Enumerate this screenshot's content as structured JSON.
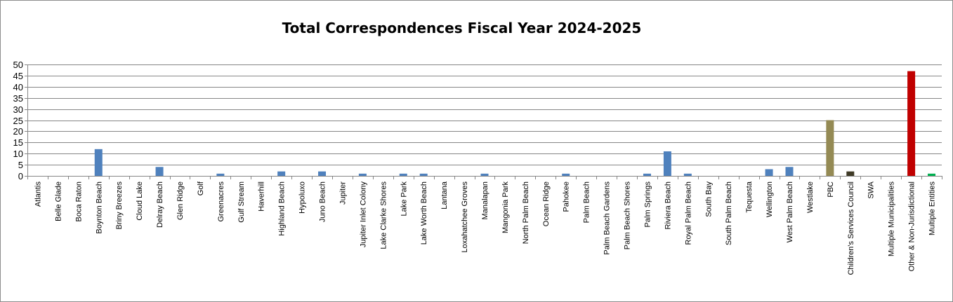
{
  "chart_data": {
    "type": "bar",
    "title": "Total Correspondences Fiscal Year 2024-2025",
    "xlabel": "",
    "ylabel": "",
    "ylim": [
      0,
      50
    ],
    "yticks": [
      0,
      5,
      10,
      15,
      20,
      25,
      30,
      35,
      40,
      45,
      50
    ],
    "grid": true,
    "legend": "none",
    "categories": [
      "Atlantis",
      "Belle Glade",
      "Boca Raton",
      "Boynton Beach",
      "Briny Breezes",
      "Cloud Lake",
      "Delray Beach",
      "Glen Ridge",
      "Golf",
      "Greenacres",
      "Gulf Stream",
      "Haverhill",
      "Highland Beach",
      "Hypoluxo",
      "Juno Beach",
      "Jupiter",
      "Jupiter Inlet Colony",
      "Lake Clarke Shores",
      "Lake Park",
      "Lake Worth Beach",
      "Lantana",
      "Loxahatchee Groves",
      "Manalapan",
      "Mangonia Park",
      "North Palm Beach",
      "Ocean Ridge",
      "Pahokee",
      "Palm Beach",
      "Palm Beach Gardens",
      "Palm Beach Shores",
      "Palm Springs",
      "Riviera Beach",
      "Royal Palm Beach",
      "South Bay",
      "South Palm Beach",
      "Tequesta",
      "Wellington",
      "West Palm Beach",
      "Westlake",
      "PBC",
      "Children's Services Council",
      "SWA",
      "Multiple Municipalities",
      "Other & Non-Jurisdictional",
      "Multiple Entities"
    ],
    "values": [
      0,
      0,
      0,
      12,
      0,
      0,
      4,
      0,
      0,
      1,
      0,
      0,
      2,
      0,
      2,
      0,
      1,
      0,
      1,
      1,
      0,
      0,
      1,
      0,
      0,
      0,
      1,
      0,
      0,
      0,
      1,
      11,
      1,
      0,
      0,
      0,
      3,
      4,
      0,
      25,
      2,
      0,
      0,
      47,
      1
    ],
    "colors": {
      "default": "#4f81bd",
      "PBC": "#948a54",
      "Children's Services Council": "#3f3a26",
      "Other & Non-Jurisdictional": "#c00000",
      "Multiple Entities": "#00b050",
      "grid": "#868686",
      "axis": "#868686"
    }
  }
}
